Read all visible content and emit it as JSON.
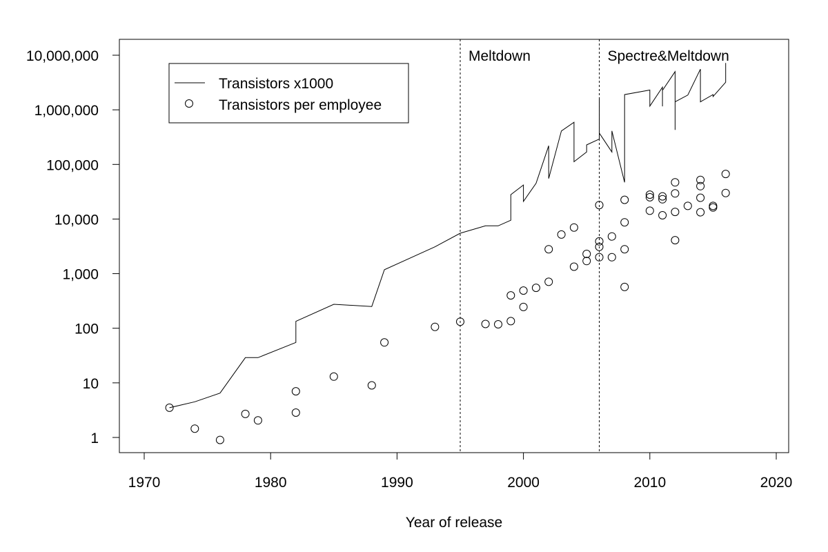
{
  "chart_data": {
    "type": "line+scatter",
    "xlabel": "Year of release",
    "ylabel": "",
    "xlim": [
      1968,
      2021
    ],
    "ylim": [
      0.55,
      14000000
    ],
    "yscale": "log",
    "x_ticks": [
      1970,
      1980,
      1990,
      2000,
      2010,
      2020
    ],
    "x_tick_labels": [
      "1970",
      "1980",
      "1990",
      "2000",
      "2010",
      "2020"
    ],
    "y_ticks": [
      1,
      10,
      100,
      1000,
      10000,
      100000,
      1000000,
      10000000
    ],
    "y_tick_labels": [
      "1",
      "10",
      "100",
      "1,000",
      "10,000",
      "100,000",
      "1,000,000",
      "10,000,000"
    ],
    "grid": false,
    "legend_position": "top-left",
    "annotations": [
      {
        "x": 1995,
        "label": "Meltdown",
        "style": "dashed-vertical"
      },
      {
        "x": 2006,
        "label": "Spectre&Meltdown",
        "style": "dashed-vertical"
      }
    ],
    "series": [
      {
        "name": "Transistors x1000",
        "kind": "line",
        "points": [
          [
            1972,
            3.5
          ],
          [
            1974,
            4.5
          ],
          [
            1976,
            6.5
          ],
          [
            1978,
            29
          ],
          [
            1979,
            29
          ],
          [
            1982,
            55
          ],
          [
            1982,
            134
          ],
          [
            1985,
            275
          ],
          [
            1988,
            250
          ],
          [
            1989,
            1180
          ],
          [
            1993,
            3100
          ],
          [
            1995,
            5500
          ],
          [
            1997,
            7500
          ],
          [
            1998,
            7500
          ],
          [
            1999,
            9500
          ],
          [
            1999,
            28000
          ],
          [
            2000,
            42000
          ],
          [
            2000,
            21000
          ],
          [
            2001,
            45000
          ],
          [
            2002,
            220000
          ],
          [
            2002,
            55000
          ],
          [
            2003,
            410000
          ],
          [
            2004,
            592000
          ],
          [
            2004,
            112000
          ],
          [
            2005,
            169000
          ],
          [
            2005,
            228000
          ],
          [
            2006,
            291000
          ],
          [
            2006,
            1700000
          ],
          [
            2006,
            376000
          ],
          [
            2007,
            169000
          ],
          [
            2007,
            410000
          ],
          [
            2008,
            47000
          ],
          [
            2008,
            1900000
          ],
          [
            2010,
            2300000
          ],
          [
            2010,
            1170000
          ],
          [
            2011,
            2600000
          ],
          [
            2011,
            1160000
          ],
          [
            2011,
            2270000
          ],
          [
            2012,
            5000000
          ],
          [
            2012,
            430000
          ],
          [
            2012,
            1400000
          ],
          [
            2013,
            1860000
          ],
          [
            2014,
            5560000
          ],
          [
            2014,
            1400000
          ],
          [
            2015,
            1900000
          ],
          [
            2015,
            1750000
          ],
          [
            2016,
            3200000
          ],
          [
            2016,
            7200000
          ]
        ]
      },
      {
        "name": "Transistors per employee",
        "kind": "scatter",
        "marker": "open-circle",
        "points": [
          [
            1972,
            3.5
          ],
          [
            1974,
            1.45
          ],
          [
            1976,
            0.9
          ],
          [
            1978,
            2.7
          ],
          [
            1979,
            2.05
          ],
          [
            1982,
            7
          ],
          [
            1982,
            2.85
          ],
          [
            1985,
            13
          ],
          [
            1988,
            9
          ],
          [
            1989,
            55
          ],
          [
            1993,
            106
          ],
          [
            1995,
            132
          ],
          [
            1997,
            120
          ],
          [
            1998,
            118
          ],
          [
            1999,
            135
          ],
          [
            1999,
            400
          ],
          [
            2000,
            490
          ],
          [
            2000,
            245
          ],
          [
            2001,
            550
          ],
          [
            2002,
            2800
          ],
          [
            2002,
            710
          ],
          [
            2003,
            5200
          ],
          [
            2004,
            7000
          ],
          [
            2004,
            1340
          ],
          [
            2005,
            1700
          ],
          [
            2005,
            2300
          ],
          [
            2006,
            3100
          ],
          [
            2006,
            18000
          ],
          [
            2006,
            3900
          ],
          [
            2006,
            2000
          ],
          [
            2007,
            4800
          ],
          [
            2007,
            2000
          ],
          [
            2008,
            22500
          ],
          [
            2008,
            8700
          ],
          [
            2008,
            2800
          ],
          [
            2008,
            570
          ],
          [
            2010,
            28000
          ],
          [
            2010,
            14200
          ],
          [
            2010,
            25000
          ],
          [
            2011,
            26000
          ],
          [
            2011,
            11700
          ],
          [
            2011,
            23000
          ],
          [
            2012,
            47000
          ],
          [
            2012,
            29500
          ],
          [
            2012,
            13500
          ],
          [
            2012,
            4100
          ],
          [
            2013,
            17400
          ],
          [
            2014,
            52000
          ],
          [
            2014,
            40000
          ],
          [
            2014,
            24500
          ],
          [
            2014,
            13300
          ],
          [
            2015,
            17400
          ],
          [
            2015,
            16300
          ],
          [
            2016,
            67000
          ],
          [
            2016,
            30000
          ]
        ]
      }
    ]
  }
}
